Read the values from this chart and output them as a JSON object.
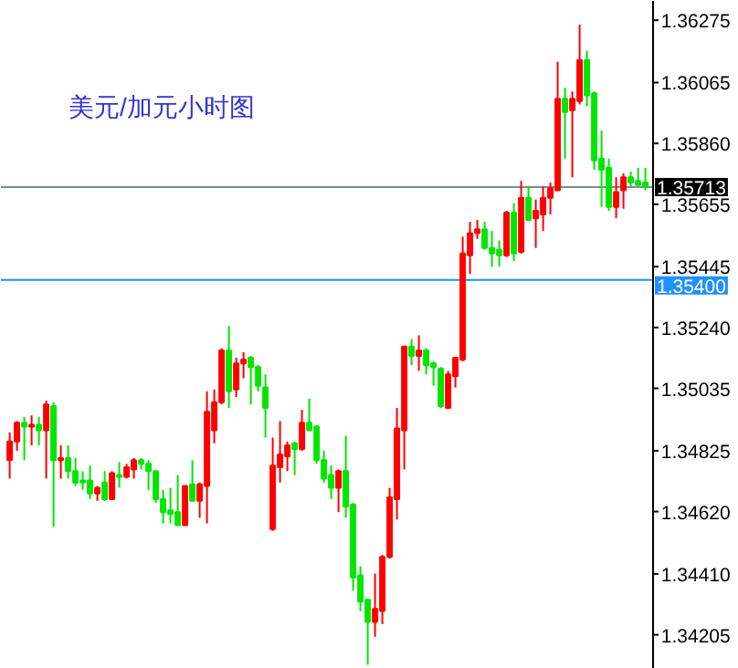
{
  "chart_data": {
    "type": "candlestick",
    "title": "美元/加元小时图",
    "categories": [
      null,
      null,
      null,
      null,
      null,
      null,
      null,
      null,
      null,
      null,
      null,
      null,
      null,
      null,
      null,
      null,
      null,
      null,
      null,
      null,
      null,
      null,
      null,
      null,
      null,
      null,
      null,
      null,
      null,
      null,
      null,
      null,
      null,
      null,
      null,
      null,
      null,
      null,
      null,
      null,
      null,
      null,
      null,
      null,
      null,
      null,
      null,
      null,
      null,
      null,
      null,
      null,
      null,
      null,
      null,
      null,
      null,
      null,
      null,
      null,
      null,
      null,
      null,
      null,
      null,
      null,
      null,
      null,
      null,
      null,
      null,
      null,
      null,
      null,
      null,
      null,
      null,
      null,
      null,
      null,
      null,
      null,
      null,
      null,
      null,
      null,
      null,
      null
    ],
    "ohlc": [
      [
        1.34793,
        1.34887,
        1.34731,
        1.34856
      ],
      [
        1.34856,
        1.34925,
        1.34825,
        1.34919
      ],
      [
        1.34919,
        1.34938,
        1.34793,
        1.34906
      ],
      [
        1.34906,
        1.34944,
        1.34843,
        1.34912
      ],
      [
        1.34912,
        1.34938,
        1.34843,
        1.34894
      ],
      [
        1.34894,
        1.34994,
        1.34731,
        1.34981
      ],
      [
        1.34975,
        1.34988,
        1.34568,
        1.34793
      ],
      [
        1.34793,
        1.34843,
        1.34731,
        1.348
      ],
      [
        1.348,
        1.34843,
        1.34731,
        1.34756
      ],
      [
        1.34756,
        1.348,
        1.34706,
        1.34718
      ],
      [
        1.34725,
        1.34756,
        1.34693,
        1.34718
      ],
      [
        1.34725,
        1.34775,
        1.34662,
        1.34681
      ],
      [
        1.34681,
        1.34706,
        1.34656,
        1.347
      ],
      [
        1.34718,
        1.34756,
        1.34656,
        1.34662
      ],
      [
        1.34662,
        1.34756,
        1.34662,
        1.34749
      ],
      [
        1.34743,
        1.34787,
        1.347,
        1.34737
      ],
      [
        1.34737,
        1.34781,
        1.34731,
        1.34769
      ],
      [
        1.34762,
        1.348,
        1.34731,
        1.34793
      ],
      [
        1.34793,
        1.348,
        1.34762,
        1.34781
      ],
      [
        1.34781,
        1.34793,
        1.34693,
        1.34756
      ],
      [
        1.34756,
        1.34756,
        1.34649,
        1.34662
      ],
      [
        1.34662,
        1.34693,
        1.3458,
        1.34618
      ],
      [
        1.34624,
        1.347,
        1.3458,
        1.34612
      ],
      [
        1.34618,
        1.34743,
        1.34574,
        1.34574
      ],
      [
        1.34574,
        1.34706,
        1.34574,
        1.34706
      ],
      [
        1.34712,
        1.34793,
        1.34656,
        1.34656
      ],
      [
        1.34656,
        1.34718,
        1.34599,
        1.34712
      ],
      [
        1.34706,
        1.35025,
        1.3458,
        1.34956
      ],
      [
        1.34894,
        1.35031,
        1.3485,
        1.34988
      ],
      [
        1.34988,
        1.3517,
        1.34981,
        1.35163
      ],
      [
        1.35163,
        1.35245,
        1.34969,
        1.35025
      ],
      [
        1.35031,
        1.35138,
        1.35006,
        1.35119
      ],
      [
        1.35119,
        1.35157,
        1.35069,
        1.35132
      ],
      [
        1.35138,
        1.35144,
        1.34981,
        1.35107
      ],
      [
        1.35107,
        1.35113,
        1.35025,
        1.35044
      ],
      [
        1.35038,
        1.35082,
        1.34869,
        1.34969
      ],
      [
        1.34561,
        1.34869,
        1.34555,
        1.34775
      ],
      [
        1.34769,
        1.34925,
        1.34718,
        1.34812
      ],
      [
        1.34806,
        1.34856,
        1.34756,
        1.34843
      ],
      [
        1.3485,
        1.34856,
        1.34743,
        1.34831
      ],
      [
        1.34831,
        1.34963,
        1.34825,
        1.34919
      ],
      [
        1.34919,
        1.35,
        1.34894,
        1.34894
      ],
      [
        1.34906,
        1.34912,
        1.34781,
        1.34793
      ],
      [
        1.34793,
        1.34825,
        1.34718,
        1.34731
      ],
      [
        1.34743,
        1.34775,
        1.34662,
        1.347
      ],
      [
        1.347,
        1.34762,
        1.34618,
        1.34756
      ],
      [
        1.34756,
        1.34875,
        1.34599,
        1.34637
      ],
      [
        1.34643,
        1.34649,
        1.34354,
        1.34398
      ],
      [
        1.34405,
        1.34436,
        1.34285,
        1.34317
      ],
      [
        1.34323,
        1.34323,
        1.34104,
        1.34248
      ],
      [
        1.34248,
        1.34411,
        1.34198,
        1.34292
      ],
      [
        1.34285,
        1.34474,
        1.34241,
        1.34467
      ],
      [
        1.34467,
        1.347,
        1.34461,
        1.34668
      ],
      [
        1.34662,
        1.34969,
        1.34593,
        1.349
      ],
      [
        1.34894,
        1.35176,
        1.34762,
        1.35176
      ],
      [
        1.35176,
        1.35201,
        1.35113,
        1.35144
      ],
      [
        1.35144,
        1.35214,
        1.35094,
        1.35163
      ],
      [
        1.35163,
        1.3517,
        1.35082,
        1.35113
      ],
      [
        1.35119,
        1.35126,
        1.35044,
        1.35107
      ],
      [
        1.35101,
        1.35107,
        1.34969,
        1.34975
      ],
      [
        1.34969,
        1.35094,
        1.34969,
        1.35082
      ],
      [
        1.35076,
        1.35138,
        1.35038,
        1.35138
      ],
      [
        1.35132,
        1.35546,
        1.35126,
        1.35489
      ],
      [
        1.35483,
        1.35596,
        1.3542,
        1.35558
      ],
      [
        1.35558,
        1.35602,
        1.35539,
        1.35571
      ],
      [
        1.35571,
        1.35596,
        1.35502,
        1.35508
      ],
      [
        1.35508,
        1.35565,
        1.35445,
        1.35489
      ],
      [
        1.35502,
        1.35533,
        1.35445,
        1.35483
      ],
      [
        1.35483,
        1.35633,
        1.35477,
        1.35627
      ],
      [
        1.35627,
        1.35659,
        1.35464,
        1.35489
      ],
      [
        1.35495,
        1.35734,
        1.35489,
        1.35677
      ],
      [
        1.35677,
        1.35715,
        1.35602,
        1.35602
      ],
      [
        1.35608,
        1.35671,
        1.35508,
        1.35633
      ],
      [
        1.35621,
        1.35715,
        1.35565,
        1.35677
      ],
      [
        1.35677,
        1.35728,
        1.35621,
        1.35709
      ],
      [
        1.35702,
        1.36135,
        1.35702,
        1.3601
      ],
      [
        1.3601,
        1.36047,
        1.35809,
        1.35966
      ],
      [
        1.35972,
        1.36035,
        1.35746,
        1.3601
      ],
      [
        1.36003,
        1.3626,
        1.35991,
        1.36141
      ],
      [
        1.36141,
        1.36173,
        1.35985,
        1.36022
      ],
      [
        1.36029,
        1.36035,
        1.35771,
        1.35803
      ],
      [
        1.35809,
        1.35903,
        1.35646,
        1.35771
      ],
      [
        1.35778,
        1.35809,
        1.35633,
        1.35646
      ],
      [
        1.35646,
        1.35746,
        1.35608,
        1.35696
      ],
      [
        1.35702,
        1.35759,
        1.3564,
        1.35746
      ],
      [
        1.35746,
        1.35765,
        1.35715,
        1.35728
      ],
      [
        1.35734,
        1.35778,
        1.35715,
        1.35721
      ],
      [
        1.35728,
        1.35778,
        1.35702,
        1.35715
      ]
    ],
    "colors": [
      "#ff0000",
      "#ff0000",
      "#00e600",
      "#ff0000",
      "#00e600",
      "#ff0000",
      "#00e600",
      "#ff0000",
      "#00e600",
      "#00e600",
      "#00e600",
      "#00e600",
      "#ff0000",
      "#00e600",
      "#ff0000",
      "#00e600",
      "#ff0000",
      "#ff0000",
      "#00e600",
      "#00e600",
      "#00e600",
      "#00e600",
      "#00e600",
      "#00e600",
      "#ff0000",
      "#00e600",
      "#ff0000",
      "#ff0000",
      "#ff0000",
      "#ff0000",
      "#00e600",
      "#ff0000",
      "#ff0000",
      "#00e600",
      "#00e600",
      "#00e600",
      "#ff0000",
      "#ff0000",
      "#ff0000",
      "#00e600",
      "#ff0000",
      "#00e600",
      "#00e600",
      "#00e600",
      "#00e600",
      "#ff0000",
      "#00e600",
      "#00e600",
      "#00e600",
      "#00e600",
      "#ff0000",
      "#ff0000",
      "#ff0000",
      "#ff0000",
      "#ff0000",
      "#00e600",
      "#ff0000",
      "#00e600",
      "#00e600",
      "#00e600",
      "#ff0000",
      "#ff0000",
      "#ff0000",
      "#ff0000",
      "#ff0000",
      "#00e600",
      "#00e600",
      "#00e600",
      "#ff0000",
      "#00e600",
      "#ff0000",
      "#00e600",
      "#ff0000",
      "#ff0000",
      "#ff0000",
      "#ff0000",
      "#00e600",
      "#ff0000",
      "#ff0000",
      "#00e600",
      "#00e600",
      "#00e600",
      "#00e600",
      "#ff0000",
      "#ff0000",
      "#00e600",
      "#00e600",
      "#00e600"
    ],
    "ylim": [
      1.3409,
      1.3634
    ],
    "yticks": [
      1.36275,
      1.36065,
      {
        "value": 1.3586,
        "label": "1.35860"
      },
      1.35655,
      1.35445,
      {
        "value": 1.3524,
        "label": "1.35240"
      },
      1.35035,
      1.34825,
      {
        "value": 1.3462,
        "label": "1.34620"
      },
      {
        "value": 1.3441,
        "label": "1.34410"
      },
      1.34205
    ],
    "ref_lines": [
      {
        "axis": "y",
        "value": 1.35713,
        "label": "1.35713",
        "color": "#7a8a99"
      },
      {
        "axis": "y",
        "value": 1.354,
        "label": "1.35400",
        "color": "#1e90ff"
      }
    ],
    "grid": false
  }
}
